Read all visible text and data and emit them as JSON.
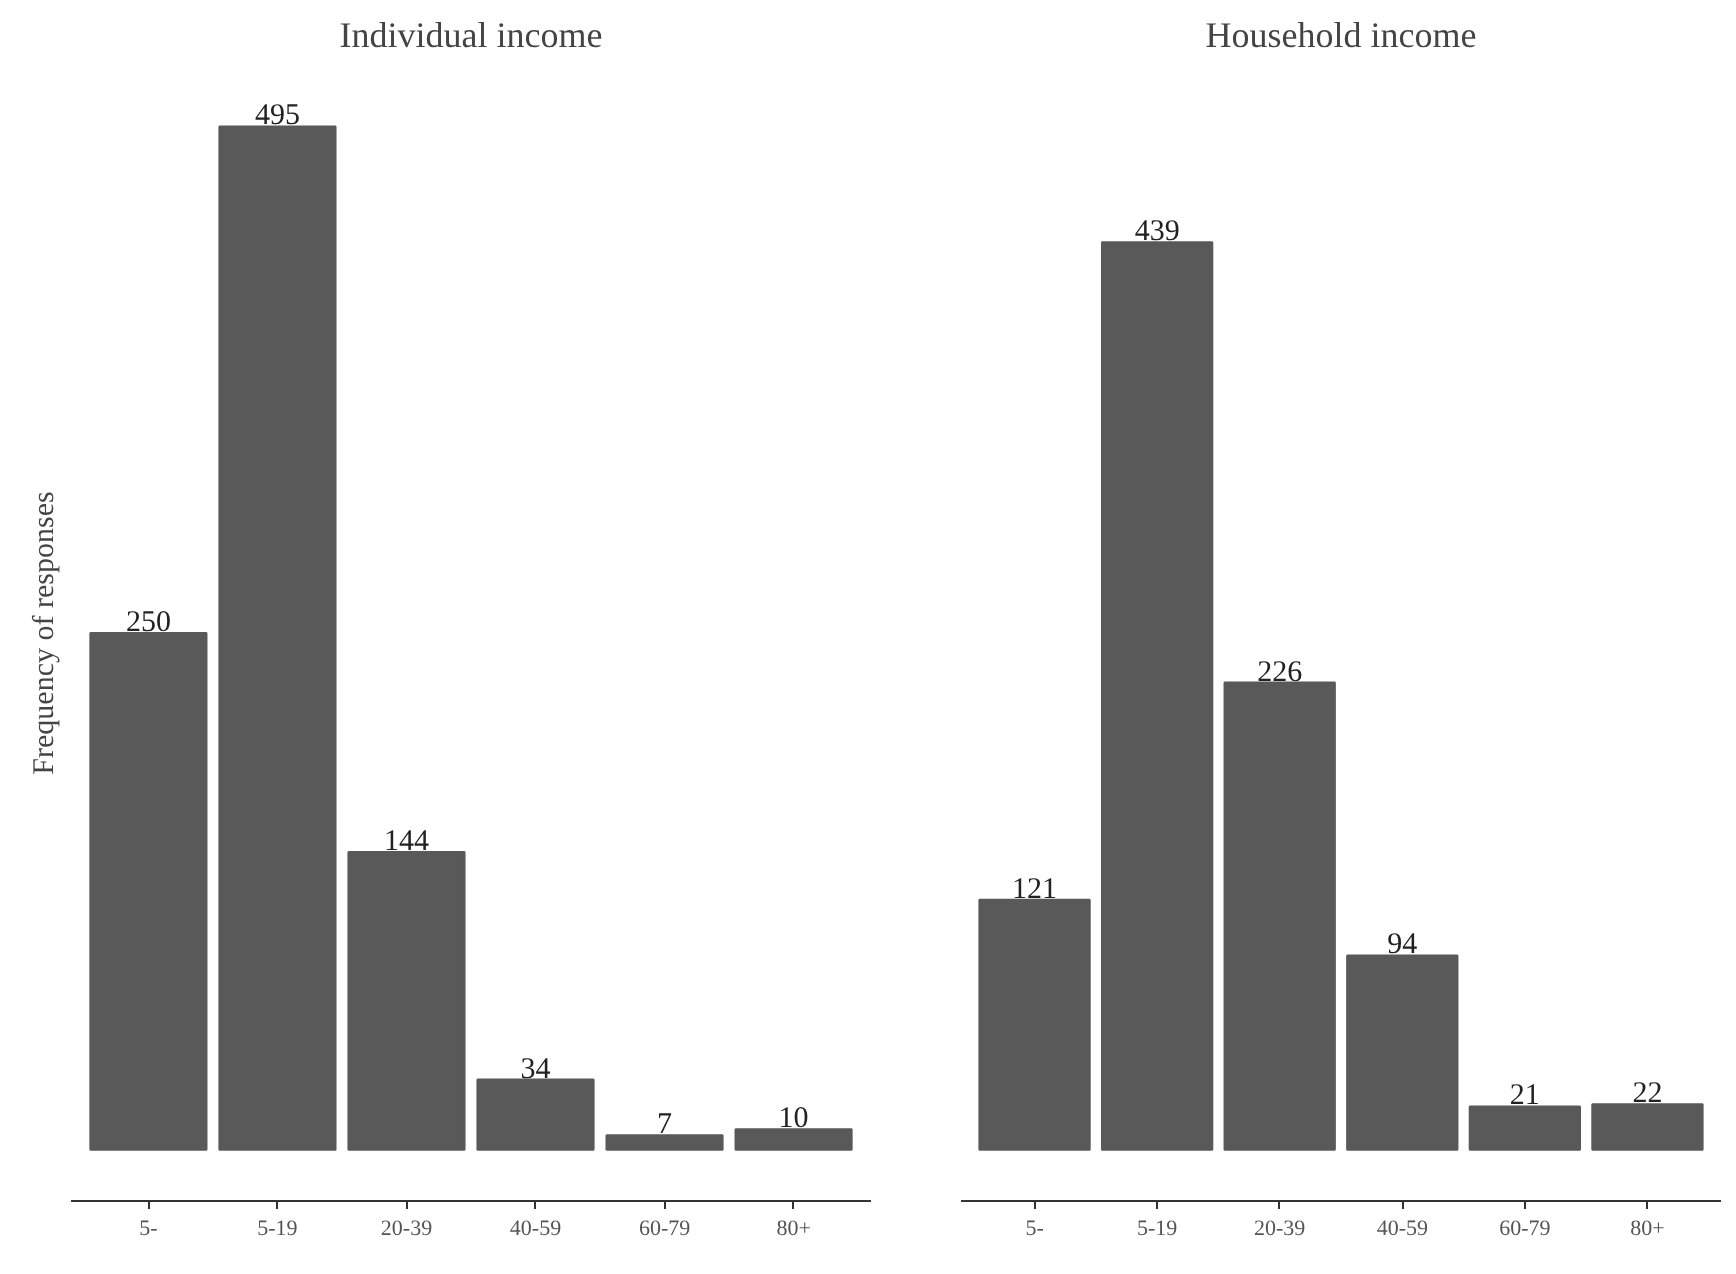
{
  "chart_data": [
    {
      "type": "bar",
      "title": "Individual income",
      "ylabel": "Frequency of responses",
      "categories": [
        "5-",
        "5-19",
        "20-39",
        "40-59",
        "60-79",
        "80+"
      ],
      "values": [
        250,
        495,
        144,
        34,
        7,
        10
      ],
      "color": "#595959",
      "data_labels": true,
      "tick_labels": "x",
      "grid": false
    },
    {
      "type": "bar",
      "title": "Household income",
      "categories": [
        "5-",
        "5-19",
        "20-39",
        "40-59",
        "60-79",
        "80+"
      ],
      "values": [
        121,
        439,
        226,
        94,
        21,
        22
      ],
      "color": "#595959",
      "data_labels": true,
      "tick_labels": "x",
      "grid": false
    }
  ]
}
